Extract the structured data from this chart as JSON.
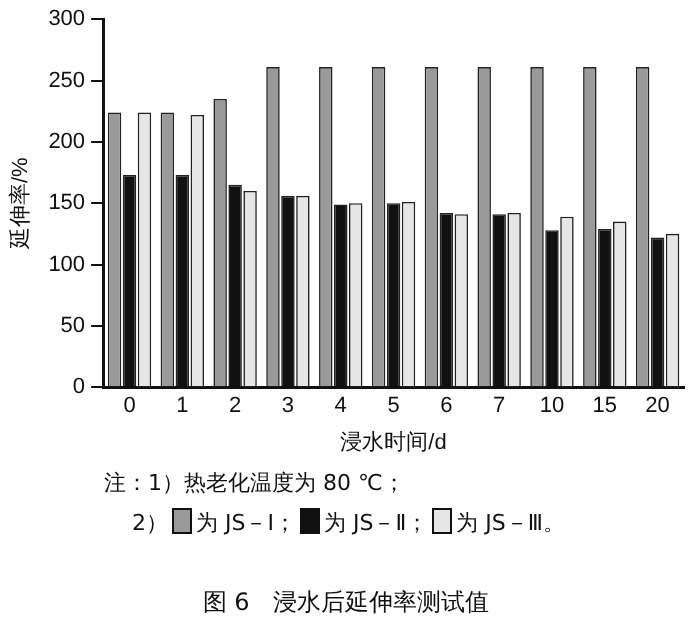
{
  "chart_data": {
    "type": "bar",
    "title": "图 6　浸水后延伸率测试值",
    "xlabel": "浸水时间/d",
    "ylabel": "延伸率/%",
    "categories": [
      "0",
      "1",
      "2",
      "3",
      "4",
      "5",
      "6",
      "7",
      "10",
      "15",
      "20"
    ],
    "series": [
      {
        "name": "为 JS－Ⅰ；",
        "color": "#9a9a9a",
        "values": [
          224,
          224,
          235,
          261,
          261,
          261,
          261,
          261,
          261,
          261,
          261
        ]
      },
      {
        "name": "为 JS－Ⅱ；",
        "color": "#111111",
        "values": [
          173,
          173,
          165,
          156,
          149,
          150,
          142,
          141,
          128,
          129,
          122
        ]
      },
      {
        "name": "为 JS－Ⅲ。",
        "color": "#e6e6e6",
        "values": [
          224,
          222,
          160,
          156,
          150,
          151,
          141,
          142,
          139,
          135,
          125
        ]
      }
    ],
    "ylim": [
      0,
      300
    ],
    "yticks": [
      0,
      50,
      100,
      150,
      200,
      250,
      300
    ],
    "grid": false,
    "legend": "bottom",
    "legend_title": "2）",
    "annotations": [
      "注：1）热老化温度为 80 ℃；"
    ]
  }
}
